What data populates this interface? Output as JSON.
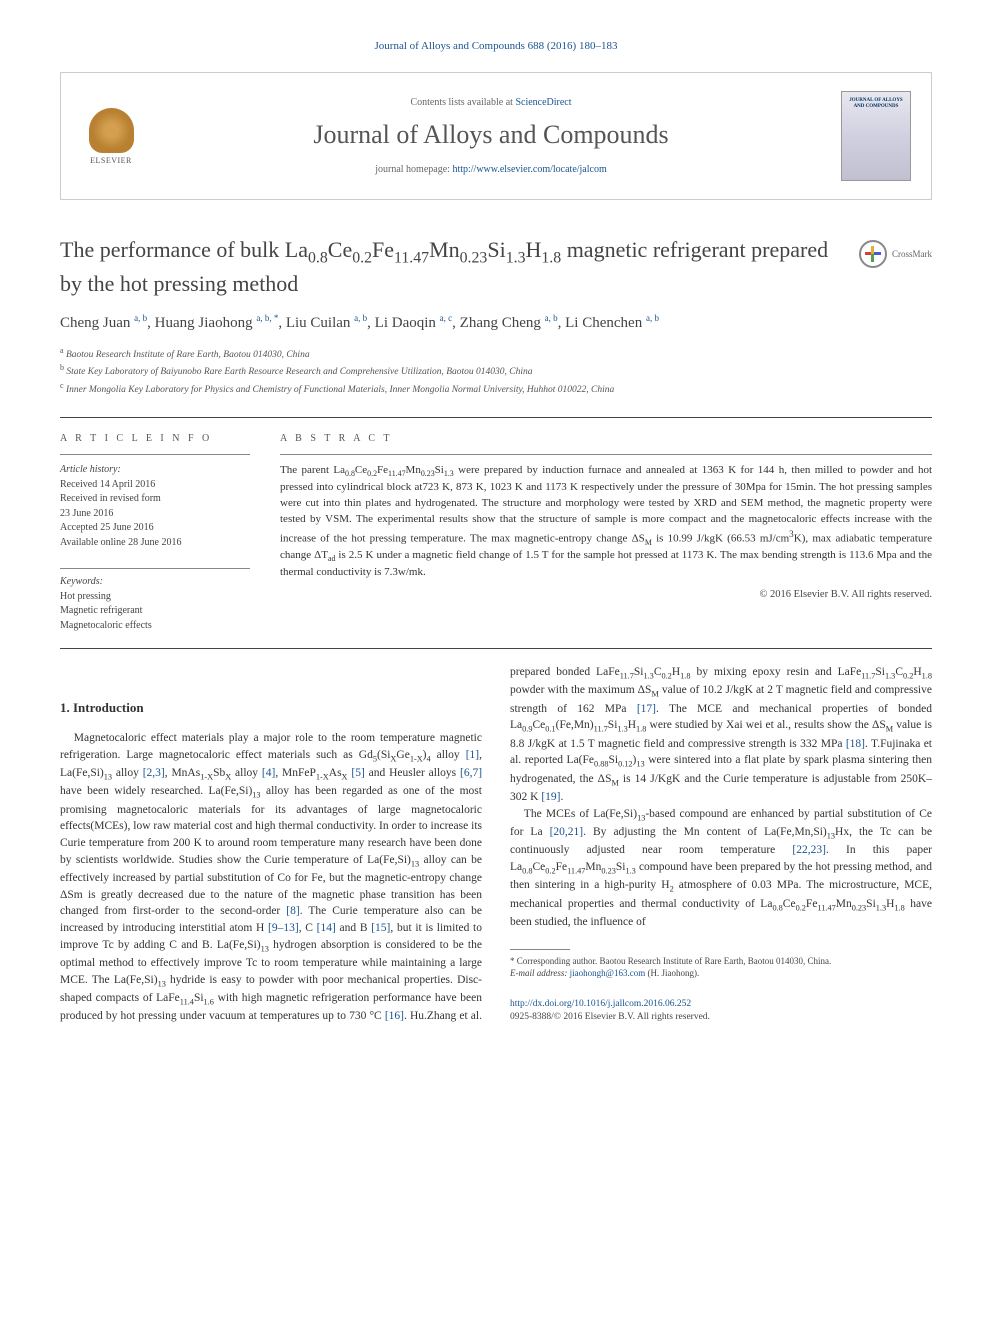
{
  "top_citation": "Journal of Alloys and Compounds 688 (2016) 180–183",
  "header": {
    "elsevier": "ELSEVIER",
    "contents_prefix": "Contents lists available at ",
    "contents_link": "ScienceDirect",
    "journal_title": "Journal of Alloys and Compounds",
    "homepage_prefix": "journal homepage: ",
    "homepage_link": "http://www.elsevier.com/locate/jalcom",
    "cover_text": "JOURNAL OF ALLOYS AND COMPOUNDS"
  },
  "crossmark_label": "CrossMark",
  "title_html": "The performance of bulk La<sub>0.8</sub>Ce<sub>0.2</sub>Fe<sub>11.47</sub>Mn<sub>0.23</sub>Si<sub>1.3</sub>H<sub>1.8</sub> magnetic refrigerant prepared by the hot pressing method",
  "authors_html": "Cheng Juan <sup>a, b</sup>, Huang Jiaohong <sup>a, b, *</sup>, Liu Cuilan <sup>a, b</sup>, Li Daoqin <sup>a, c</sup>, Zhang Cheng <sup>a, b</sup>, Li Chenchen <sup>a, b</sup>",
  "affiliations": {
    "a": "Baotou Research Institute of Rare Earth, Baotou 014030, China",
    "b": "State Key Laboratory of Baiyunobo Rare Earth Resource Research and Comprehensive Utilization, Baotou 014030, China",
    "c": "Inner Mongolia Key Laboratory for Physics and Chemistry of Functional Materials, Inner Mongolia Normal University, Huhhot 010022, China"
  },
  "article_info_label": "A R T I C L E  I N F O",
  "abstract_label": "A B S T R A C T",
  "history": {
    "heading": "Article history:",
    "received": "Received 14 April 2016",
    "revised1": "Received in revised form",
    "revised2": "23 June 2016",
    "accepted": "Accepted 25 June 2016",
    "online": "Available online 28 June 2016"
  },
  "keywords": {
    "heading": "Keywords:",
    "k1": "Hot pressing",
    "k2": "Magnetic refrigerant",
    "k3": "Magnetocaloric effects"
  },
  "abstract_html": "The parent La<sub>0.8</sub>Ce<sub>0.2</sub>Fe<sub>11.47</sub>Mn<sub>0.23</sub>Si<sub>1.3</sub> were prepared by induction furnace and annealed at 1363 K for 144 h, then milled to powder and hot pressed into cylindrical block at723 K, 873 K, 1023 K and 1173 K respectively under the pressure of 30Mpa for 15min. The hot pressing samples were cut into thin plates and hydrogenated. The structure and morphology were tested by XRD and SEM method, the magnetic property were tested by VSM. The experimental results show that the structure of sample is more compact and the magnetocaloric effects increase with the increase of the hot pressing temperature. The max magnetic-entropy change ΔS<sub>M</sub> is 10.99 J/kgK (66.53 mJ/cm<sup>3</sup>K), max adiabatic temperature change ΔT<sub>ad</sub> is 2.5 K under a magnetic field change of 1.5 T for the sample hot pressed at 1173 K. The max bending strength is 113.6 Mpa and the thermal conductivity is 7.3w/mk.",
  "abstract_copyright": "© 2016 Elsevier B.V. All rights reserved.",
  "intro_heading": "1. Introduction",
  "body": {
    "p1_html": "Magnetocaloric effect materials play a major role to the room temperature magnetic refrigeration. Large magnetocaloric effect materials such as Gd<sub>5</sub>(Si<sub>X</sub>Ge<sub>1-X</sub>)<sub>4</sub> alloy <span class='ref-link'>[1]</span>, La(Fe,Si)<sub>13</sub> alloy <span class='ref-link'>[2,3]</span>, MnAs<sub>1-X</sub>Sb<sub>X</sub> alloy <span class='ref-link'>[4]</span>, MnFeP<sub>1-X</sub>As<sub>X</sub> <span class='ref-link'>[5]</span> and Heusler alloys <span class='ref-link'>[6,7]</span> have been widely researched. La(Fe,Si)<sub>13</sub> alloy has been regarded as one of the most promising magnetocaloric materials for its advantages of large magnetocaloric effects(MCEs), low raw material cost and high thermal conductivity. In order to increase its Curie temperature from 200 K to around room temperature many research have been done by scientists worldwide. Studies show the Curie temperature of La(Fe,Si)<sub>13</sub> alloy can be effectively increased by partial substitution of Co for Fe, but the magnetic-entropy change ΔSm is greatly decreased due to the nature of the magnetic phase transition has been changed from first-order to the second-order <span class='ref-link'>[8]</span>. The Curie temperature also can be increased by introducing interstitial atom H <span class='ref-link'>[9–13]</span>, C <span class='ref-link'>[14]</span> and B <span class='ref-link'>[15]</span>, but it is limited to improve Tc by adding C and B. La(Fe,Si)<sub>13</sub> hydrogen absorption is considered to be the optimal method to effectively improve Tc to room temperature while maintaining a large MCE. The La(Fe,Si)<sub>13</sub> hydride is easy to powder with poor mechanical properties. Disc-shaped compacts of LaFe<sub>11.4</sub>Si<sub>1.6</sub> with high magnetic refrigeration performance have been produced by hot pressing under vacuum at temperatures up to 730 °C <span class='ref-link'>[16]</span>. Hu.Zhang et al. prepared bonded LaFe<sub>11.7</sub>Si<sub>1.3</sub>C<sub>0.2</sub>H<sub>1.8</sub> by mixing epoxy resin and LaFe<sub>11.7</sub>Si<sub>1.3</sub>C<sub>0.2</sub>H<sub>1.8</sub> powder with the maximum ΔS<sub>M</sub> value of 10.2 J/kgK at 2 T magnetic field and compressive strength of 162 MPa <span class='ref-link'>[17]</span>. The MCE and mechanical properties of bonded La<sub>0.9</sub>Ce<sub>0.1</sub>(Fe,Mn)<sub>11.7</sub>Si<sub>1.3</sub>H<sub>1.8</sub> were studied by Xai wei et al., results show the ΔS<sub>M</sub> value is 8.8 J/kgK at 1.5 T magnetic field and compressive strength is 332 MPa <span class='ref-link'>[18]</span>. T.Fujinaka et al. reported La(Fe<sub>0.88</sub>Si<sub>0.12</sub>)<sub>13</sub> were sintered into a flat plate by spark plasma sintering then hydrogenated, the ΔS<sub>M</sub> is 14 J/KgK and the Curie temperature is adjustable from 250K–302 K <span class='ref-link'>[19]</span>.",
    "p2_html": "The MCEs of La(Fe,Si)<sub>13</sub>-based compound are enhanced by partial substitution of Ce for La <span class='ref-link'>[20,21]</span>. By adjusting the Mn content of La(Fe,Mn,Si)<sub>13</sub>Hx, the Tc can be continuously adjusted near room temperature <span class='ref-link'>[22,23]</span>. In this paper La<sub>0.8</sub>Ce<sub>0.2</sub>Fe<sub>11.47</sub>Mn<sub>0.23</sub>Si<sub>1.3</sub> compound have been prepared by the hot pressing method, and then sintering in a high-purity H<sub>2</sub> atmosphere of 0.03 MPa. The microstructure, MCE, mechanical properties and thermal conductivity of La<sub>0.8</sub>Ce<sub>0.2</sub>Fe<sub>11.47</sub>Mn<sub>0.23</sub>Si<sub>1.3</sub>H<sub>1.8</sub> have been studied, the influence of"
  },
  "footnote": {
    "corr": "* Corresponding author. Baotou Research Institute of Rare Earth, Baotou 014030, China.",
    "email_label": "E-mail address: ",
    "email": "jiaohongh@163.com",
    "email_suffix": " (H. Jiaohong)."
  },
  "bottom": {
    "doi": "http://dx.doi.org/10.1016/j.jallcom.2016.06.252",
    "issn_copy": "0925-8388/© 2016 Elsevier B.V. All rights reserved."
  },
  "colors": {
    "link": "#1a5490",
    "text": "#333333",
    "heading": "#444444",
    "border": "#cccccc"
  }
}
